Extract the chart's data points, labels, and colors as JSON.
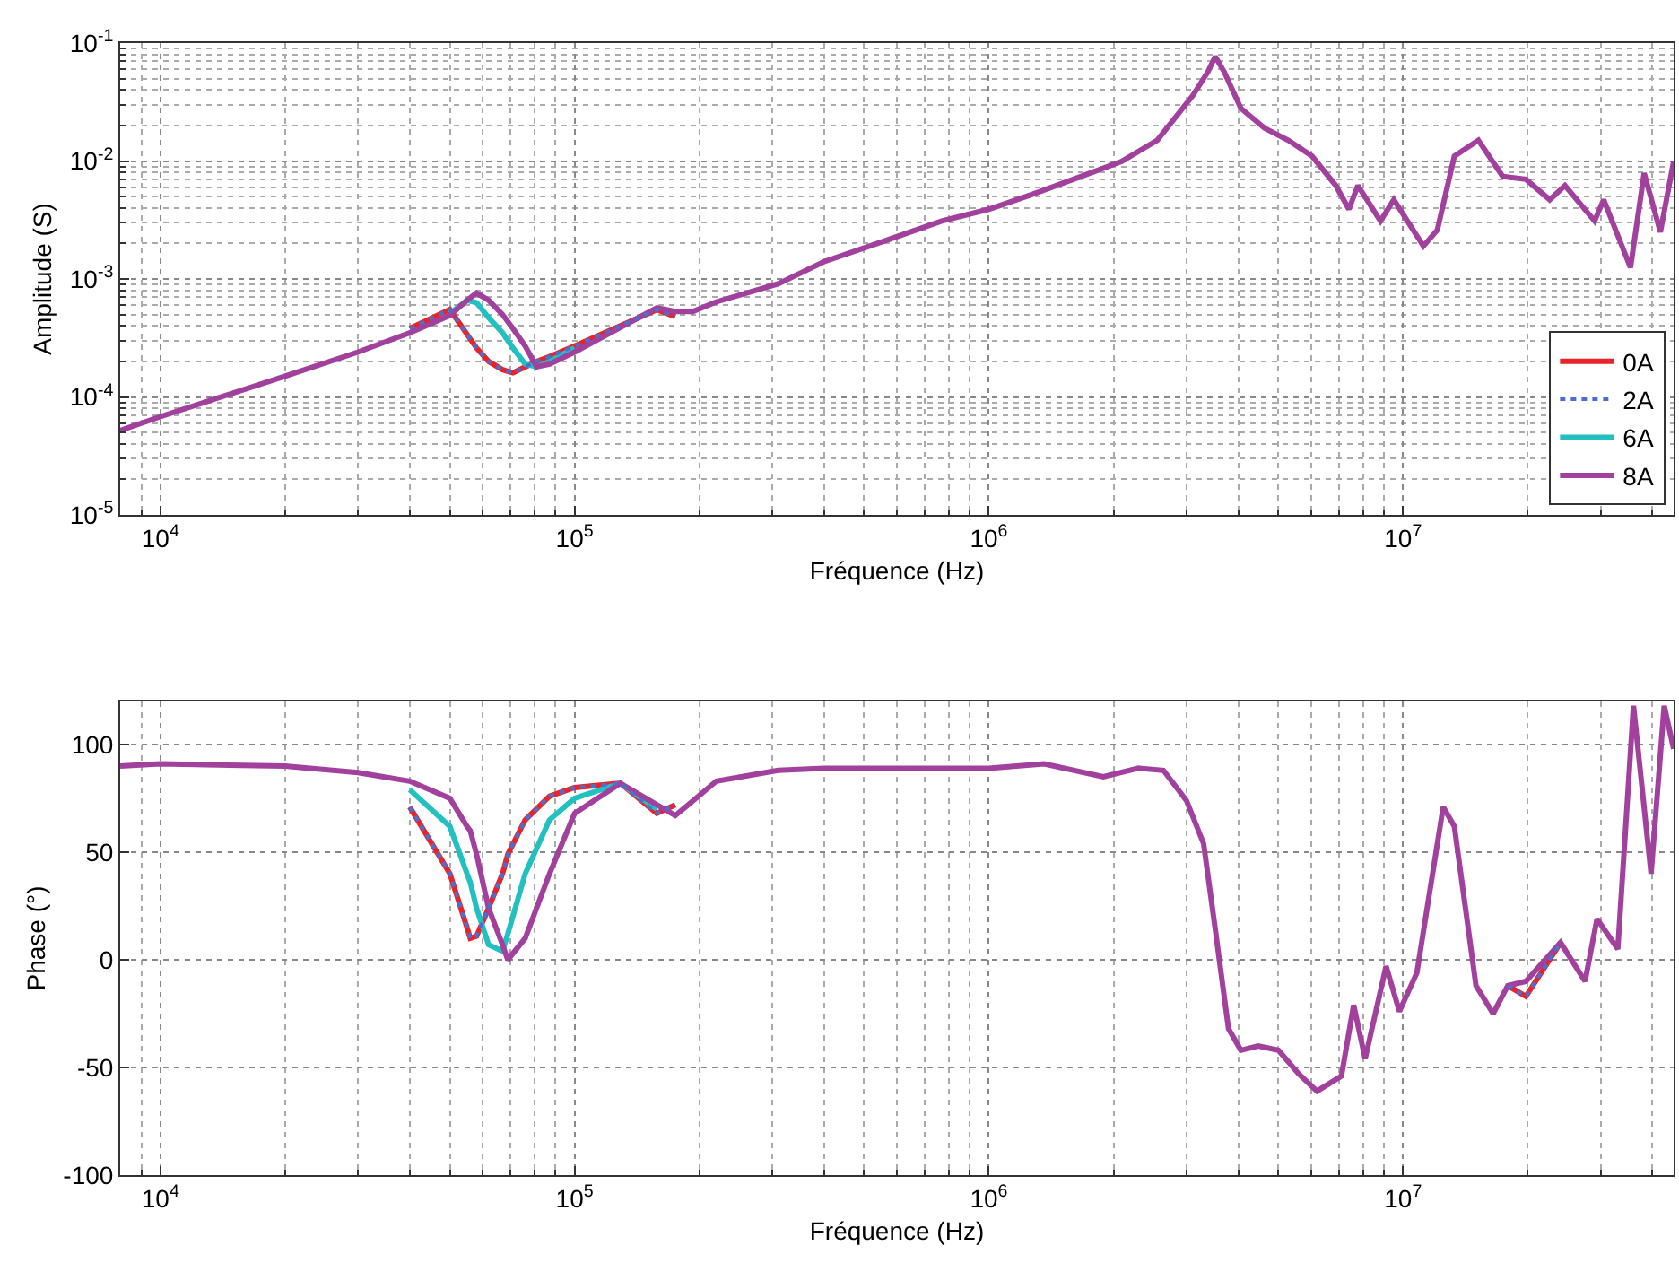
{
  "chart_data": [
    {
      "type": "line",
      "xlabel": "Fréquence (Hz)",
      "ylabel": "Amplitude (S)",
      "log": "xy",
      "grid": true,
      "legend": "bottom right",
      "marker": "none",
      "x": [
        8000,
        10000,
        20000,
        30000,
        40000,
        50000,
        55000,
        58000,
        62000,
        67000,
        71000,
        76000,
        81000,
        87000,
        100000,
        158000,
        175000,
        193000,
        220000,
        310000,
        400000,
        560000,
        770000,
        1000000,
        1270000,
        1600000,
        2090000,
        2550000,
        3110000,
        3380000,
        3520000,
        3700000,
        4060000,
        4630000,
        5280000,
        6030000,
        6880000,
        7400000,
        7780000,
        8820000,
        9500000,
        11200000,
        12100000,
        13300000,
        15200000,
        17400000,
        19800000,
        22600000,
        24600000,
        29000000,
        30500000,
        35400000,
        38200000,
        41800000,
        45000000
      ],
      "xlim": [
        8000,
        45000000
      ],
      "xticks": [
        {
          "value": 10000,
          "label": "10$^{4}$"
        },
        {
          "value": 100000,
          "label": "10$^{5}$"
        },
        {
          "value": 1000000,
          "label": "10$^{6}$"
        },
        {
          "value": 10000000,
          "label": "10$^{7}$"
        }
      ],
      "ylim": [
        1e-05,
        0.1
      ],
      "yticks": [
        {
          "value": 1e-05,
          "label": "10$^{-5}$"
        },
        {
          "value": 0.0001,
          "label": "10$^{-4}$"
        },
        {
          "value": 0.001,
          "label": "10$^{-3}$"
        },
        {
          "value": 0.01,
          "label": "10$^{-2}$"
        },
        {
          "value": 0.1,
          "label": "10$^{-1}$"
        }
      ],
      "series": [
        {
          "name": "0A",
          "color": "#e8242a",
          "line_style": "solid",
          "values": [
            null,
            null,
            null,
            null,
            0.00038,
            0.00055,
            0.00034,
            0.00026,
            0.0002,
            0.00017,
            0.00016,
            0.00018,
            0.0002,
            0.00022,
            0.00027,
            0.00055,
            0.00048,
            null,
            null,
            null,
            null,
            null,
            null,
            null,
            null,
            null,
            null,
            null,
            null,
            null,
            null,
            null,
            null,
            null,
            null,
            null,
            null,
            null,
            null,
            null,
            null,
            null,
            null,
            null,
            null,
            null,
            null,
            null,
            null,
            null,
            null,
            null,
            null,
            null,
            null
          ]
        },
        {
          "name": "2A",
          "color": "#4a6fd0",
          "line_style": "dotted",
          "values": [
            null,
            null,
            null,
            null,
            0.00038,
            0.00055,
            0.00034,
            0.00026,
            0.0002,
            0.00017,
            0.00016,
            0.00018,
            0.0002,
            0.00022,
            0.00027,
            0.00055,
            0.00048,
            null,
            null,
            null,
            null,
            null,
            null,
            null,
            null,
            null,
            null,
            null,
            null,
            null,
            null,
            null,
            null,
            null,
            null,
            null,
            null,
            null,
            null,
            null,
            null,
            null,
            null,
            null,
            null,
            null,
            null,
            null,
            null,
            null,
            null,
            null,
            null,
            null,
            null
          ]
        },
        {
          "name": "6A",
          "color": "#22c0c0",
          "line_style": "solid",
          "values": [
            null,
            null,
            null,
            null,
            null,
            0.00051,
            0.00066,
            0.00063,
            0.00047,
            0.00035,
            0.00026,
            0.00019,
            0.00018,
            0.0002,
            0.00026,
            null,
            null,
            null,
            null,
            null,
            null,
            null,
            null,
            null,
            null,
            null,
            null,
            null,
            null,
            null,
            null,
            null,
            null,
            null,
            null,
            null,
            null,
            null,
            null,
            null,
            null,
            null,
            null,
            null,
            null,
            null,
            null,
            null,
            null,
            null,
            null,
            null,
            null,
            null,
            null
          ]
        },
        {
          "name": "8A",
          "color": "#a2409e",
          "line_style": "solid",
          "values": [
            5.2e-05,
            6.8e-05,
            0.00015,
            0.00024,
            0.00035,
            0.00049,
            0.00066,
            0.00076,
            0.00066,
            0.0005,
            0.00038,
            0.00027,
            0.00018,
            0.00019,
            0.00024,
            0.00057,
            0.00053,
            0.00053,
            0.00064,
            0.00091,
            0.0014,
            0.0021,
            0.0031,
            0.0039,
            0.0052,
            0.007,
            0.0099,
            0.015,
            0.036,
            0.057,
            0.077,
            0.057,
            0.028,
            0.019,
            0.015,
            0.011,
            0.0062,
            0.0039,
            0.0062,
            0.0031,
            0.0047,
            0.0019,
            0.0026,
            0.011,
            0.015,
            0.0074,
            0.007,
            0.0047,
            0.0062,
            0.0031,
            0.0047,
            0.00125,
            0.0079,
            0.0025,
            0.0099
          ]
        }
      ]
    },
    {
      "type": "line",
      "xlabel": "Fréquence (Hz)",
      "ylabel": "Phase (°)",
      "log": "x",
      "grid": true,
      "legend": false,
      "marker": "none",
      "x": [
        8000,
        10000,
        20000,
        30000,
        40000,
        50000,
        55000,
        56000,
        58000,
        62000,
        67000,
        69000,
        76000,
        87000,
        100000,
        129000,
        158000,
        175000,
        220000,
        310000,
        400000,
        1000000,
        1360000,
        1890000,
        2300000,
        2640000,
        3000000,
        3300000,
        3500000,
        3790000,
        4060000,
        4470000,
        5000000,
        5600000,
        6200000,
        7100000,
        7600000,
        8100000,
        9100000,
        9800000,
        10800000,
        12500000,
        13300000,
        15000000,
        16500000,
        17900000,
        19800000,
        24000000,
        27500000,
        29400000,
        33000000,
        36000000,
        39700000,
        42700000,
        45000000
      ],
      "xlim": [
        8000,
        45000000
      ],
      "xticks": [
        {
          "value": 10000,
          "label": "10$^{4}$"
        },
        {
          "value": 100000,
          "label": "10$^{5}$"
        },
        {
          "value": 1000000,
          "label": "10$^{6}$"
        },
        {
          "value": 10000000,
          "label": "10$^{7}$"
        }
      ],
      "ylim": [
        -100,
        120
      ],
      "yticks": [
        -100,
        -50,
        0,
        50,
        100
      ],
      "series": [
        {
          "color": "#e8242a",
          "line_style": "solid",
          "values": [
            null,
            null,
            null,
            null,
            71,
            40,
            15,
            10,
            11,
            24,
            40,
            49,
            65,
            76,
            80,
            82,
            68,
            72,
            null,
            null,
            null,
            null,
            null,
            null,
            null,
            null,
            null,
            null,
            null,
            null,
            null,
            null,
            null,
            null,
            null,
            null,
            null,
            null,
            null,
            null,
            null,
            null,
            null,
            null,
            null,
            -12,
            -17,
            8,
            null,
            null,
            null,
            null,
            null,
            null,
            null
          ]
        },
        {
          "color": "#4a6fd0",
          "line_style": "dotted",
          "values": [
            null,
            null,
            null,
            null,
            71,
            40,
            15,
            10,
            11,
            24,
            40,
            49,
            65,
            76,
            80,
            82,
            68,
            72,
            null,
            null,
            null,
            null,
            null,
            null,
            null,
            null,
            null,
            null,
            null,
            null,
            null,
            null,
            null,
            null,
            null,
            null,
            null,
            null,
            null,
            null,
            null,
            null,
            null,
            null,
            null,
            -12,
            -17,
            8,
            null,
            null,
            null,
            null,
            null,
            null,
            null
          ]
        },
        {
          "color": "#22c0c0",
          "line_style": "solid",
          "values": [
            null,
            null,
            null,
            null,
            79,
            62,
            40,
            36,
            24,
            7,
            4,
            12,
            40,
            65,
            75,
            82,
            70,
            null,
            null,
            null,
            null,
            null,
            null,
            null,
            null,
            null,
            null,
            null,
            null,
            null,
            null,
            null,
            null,
            null,
            null,
            null,
            null,
            null,
            null,
            null,
            null,
            null,
            null,
            null,
            null,
            null,
            null,
            null,
            null,
            null,
            null,
            null,
            null,
            null,
            null
          ]
        },
        {
          "color": "#a2409e",
          "line_style": "solid",
          "values": [
            90,
            91,
            90,
            87,
            83,
            75,
            62,
            60,
            49,
            24,
            7,
            0,
            10,
            40,
            68,
            82,
            72,
            67,
            83,
            88,
            89,
            89,
            91,
            85,
            89,
            88,
            74,
            54,
            18,
            -32,
            -42,
            -40,
            -42,
            -53,
            -61,
            -54,
            -21,
            -46,
            -3,
            -24,
            -6,
            71,
            62,
            -12,
            -25,
            -12,
            -10,
            8,
            -10,
            19,
            5,
            118,
            40,
            118,
            98
          ]
        }
      ]
    }
  ]
}
